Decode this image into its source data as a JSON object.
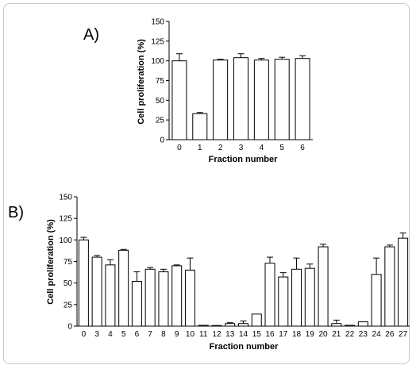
{
  "chart_data": [
    {
      "panel_label": "A)",
      "type": "bar",
      "categories": [
        "0",
        "1",
        "2",
        "3",
        "4",
        "5",
        "6"
      ],
      "values": [
        100,
        33,
        101,
        104,
        101,
        102,
        103
      ],
      "errors": [
        9,
        1.5,
        1,
        5,
        2,
        2.5,
        3.5
      ],
      "xlabel": "Fraction number",
      "ylabel": "Cell proliferation (%)",
      "ylim": [
        0,
        150
      ],
      "yticks": [
        0,
        25,
        50,
        75,
        100,
        125,
        150
      ],
      "bar_color": "#ffffff",
      "stroke_color": "#000000"
    },
    {
      "panel_label": "B)",
      "type": "bar",
      "categories": [
        "0",
        "3",
        "4",
        "5",
        "6",
        "7",
        "8",
        "9",
        "10",
        "11",
        "12",
        "13",
        "14",
        "15",
        "16",
        "17",
        "18",
        "19",
        "20",
        "21",
        "22",
        "23",
        "24",
        "26",
        "27"
      ],
      "values": [
        100,
        80,
        71,
        88,
        52,
        66,
        63,
        70,
        65,
        1,
        0,
        3,
        3,
        14,
        73,
        57,
        66,
        67,
        92,
        3,
        1,
        5,
        60,
        92,
        102
      ],
      "errors": [
        3,
        2,
        6,
        1,
        11,
        2,
        3,
        1,
        14,
        0,
        0,
        1,
        3,
        0,
        7,
        5,
        13,
        5,
        3,
        4,
        0,
        0,
        19,
        2,
        6
      ],
      "xlabel": "Fraction number",
      "ylabel": "Cell proliferation (%)",
      "ylim": [
        0,
        150
      ],
      "yticks": [
        0,
        25,
        50,
        75,
        100,
        125,
        150
      ],
      "bar_color": "#ffffff",
      "stroke_color": "#000000"
    }
  ]
}
